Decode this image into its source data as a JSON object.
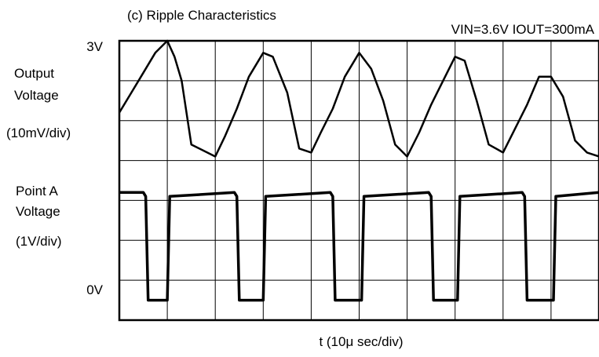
{
  "chart_data": {
    "type": "line",
    "title": "(c) Ripple Characteristics",
    "conditions": "VIN=3.6V   IOUT=300mA",
    "xlabel": "t (10μ sec/div)",
    "grid": true,
    "x_divisions": 10,
    "y_divisions": 7,
    "labels": {
      "top_level": "3V",
      "bottom_level": "0V",
      "output_line1": "Output",
      "output_line2": "Voltage",
      "output_scale": "(10mV/div)",
      "pointa_line1": "Point A",
      "pointa_line2": "Voltage",
      "pointa_scale": "(1V/div)"
    },
    "series": [
      {
        "name": "Output Voltage",
        "x_unit": "div",
        "y_unit": "div",
        "x": [
          0,
          0.25,
          0.5,
          0.75,
          1.0,
          1.15,
          1.3,
          1.5,
          2.0,
          2.2,
          2.45,
          2.7,
          3.0,
          3.2,
          3.5,
          3.75,
          4.0,
          4.2,
          4.45,
          4.7,
          5.0,
          5.25,
          5.5,
          5.75,
          6.0,
          6.25,
          6.5,
          6.75,
          7.0,
          7.2,
          7.45,
          7.7,
          8.0,
          8.25,
          8.5,
          8.75,
          9.0,
          9.25,
          9.5,
          9.75,
          10.0
        ],
        "y": [
          5.2,
          5.7,
          6.2,
          6.7,
          7.0,
          6.6,
          6.0,
          4.4,
          4.1,
          4.6,
          5.3,
          6.1,
          6.7,
          6.6,
          5.7,
          4.3,
          4.2,
          4.7,
          5.3,
          6.1,
          6.7,
          6.3,
          5.5,
          4.4,
          4.1,
          4.7,
          5.4,
          6.0,
          6.6,
          6.5,
          5.5,
          4.4,
          4.2,
          4.8,
          5.4,
          6.1,
          6.1,
          5.6,
          4.5,
          4.2,
          4.1
        ]
      },
      {
        "name": "Point A Voltage",
        "x_unit": "div",
        "y_unit": "div",
        "x": [
          0,
          0.5,
          0.55,
          0.6,
          0.95,
          1.0,
          1.05,
          2.4,
          2.45,
          2.5,
          2.95,
          3.0,
          3.05,
          4.4,
          4.45,
          4.5,
          5.0,
          5.05,
          5.1,
          6.45,
          6.5,
          6.55,
          7.0,
          7.05,
          7.1,
          8.4,
          8.45,
          8.5,
          9.0,
          9.05,
          9.1,
          10.0
        ],
        "y": [
          3.2,
          3.2,
          3.1,
          0.5,
          0.5,
          0.5,
          3.1,
          3.2,
          3.1,
          0.5,
          0.5,
          0.5,
          3.1,
          3.2,
          3.1,
          0.5,
          0.5,
          0.5,
          3.1,
          3.2,
          3.1,
          0.5,
          0.5,
          0.5,
          3.1,
          3.2,
          3.1,
          0.5,
          0.5,
          0.5,
          3.1,
          3.2
        ]
      }
    ]
  }
}
